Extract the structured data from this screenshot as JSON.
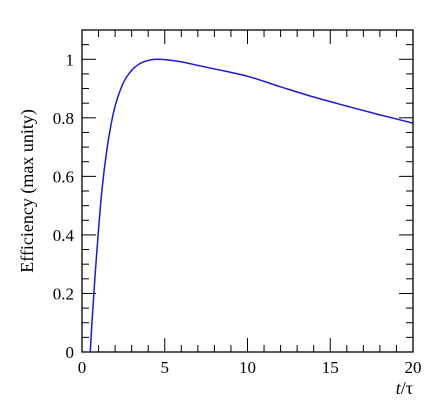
{
  "chart_data": {
    "type": "line",
    "title": "",
    "xlabel": "t/τ",
    "xlabel_parts": {
      "var": "t",
      "rest": "/τ"
    },
    "ylabel": "Efficiency (max unity)",
    "xlim": [
      0,
      20
    ],
    "ylim": [
      0,
      1.1
    ],
    "xticks": [
      0,
      5,
      10,
      15,
      20
    ],
    "yticks": [
      0,
      0.2,
      0.4,
      0.6,
      0.8,
      1
    ],
    "ytick_labels": [
      "0",
      "0.2",
      "0.4",
      "0.6",
      "0.8",
      "1"
    ],
    "grid": false,
    "legend": "none",
    "series": [
      {
        "color": "#1a1adb",
        "x": [
          0.5,
          0.6,
          0.8,
          1.0,
          1.2,
          1.5,
          1.8,
          2.0,
          2.5,
          3.0,
          3.5,
          4.0,
          4.5,
          5.0,
          6.0,
          7.0,
          8.0,
          10.0,
          12.0,
          14.0,
          16.0,
          18.0,
          20.0
        ],
        "y": [
          0.0,
          0.1,
          0.27,
          0.42,
          0.55,
          0.69,
          0.79,
          0.84,
          0.92,
          0.962,
          0.985,
          0.996,
          1.0,
          0.999,
          0.991,
          0.979,
          0.967,
          0.942,
          0.906,
          0.871,
          0.84,
          0.81,
          0.782
        ]
      }
    ]
  }
}
